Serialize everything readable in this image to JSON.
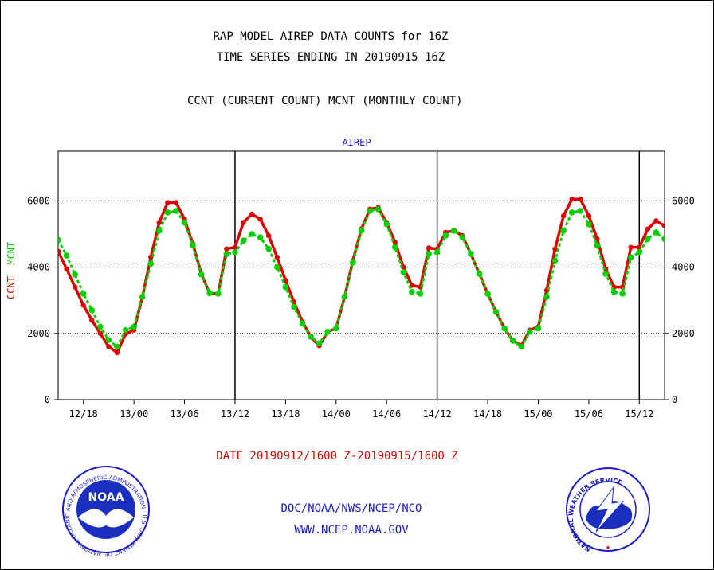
{
  "header": {
    "title_line1": "RAP MODEL AIREP DATA COUNTS for 16Z",
    "title_line2": "TIME SERIES ENDING IN 20190915 16Z",
    "subtitle": "CCNT (CURRENT COUNT) MCNT (MONTHLY COUNT)"
  },
  "footer": {
    "date_range": "DATE 20190912/1600 Z-20190915/1600 Z",
    "credit_line1": "DOC/NOAA/NWS/NCEP/NCO",
    "credit_line2": "WWW.NCEP.NOAA.GOV"
  },
  "logos": {
    "noaa_text": "NOAA",
    "noaa_ring_text": "NATIONAL OCEANIC AND ATMOSPHERIC ADMINISTRATION · U.S. DEPARTMENT OF COMMERCE",
    "nws_ring_text": "NATIONAL WEATHER SERVICE"
  },
  "colors": {
    "ccnt": "#e00000",
    "mcnt": "#00d000",
    "panel_label": "#1a1ac8",
    "frame": "#000000"
  },
  "chart_data": {
    "type": "line",
    "panel_label": "AIREP",
    "ylabel_parts": [
      "CCNT",
      "MCNT"
    ],
    "ylim": [
      0,
      7500
    ],
    "yticks": [
      0,
      2000,
      4000,
      6000
    ],
    "y_gridlines": [
      2000,
      4000,
      6000
    ],
    "x_unit": "hours from 20190912/1600 Z",
    "xlim": [
      -1,
      71
    ],
    "x_tick_positions": [
      2,
      8,
      14,
      20,
      26,
      32,
      38,
      44,
      50,
      56,
      62,
      68
    ],
    "x_tick_labels": [
      "12/18",
      "13/00",
      "13/06",
      "13/12",
      "13/18",
      "14/00",
      "14/06",
      "14/12",
      "14/18",
      "15/00",
      "15/06",
      "15/12"
    ],
    "vertical_separators": [
      20,
      44,
      68
    ],
    "legend": "none",
    "x": [
      -1,
      0,
      1,
      2,
      3,
      4,
      5,
      6,
      7,
      8,
      9,
      10,
      11,
      12,
      13,
      14,
      15,
      16,
      17,
      18,
      19,
      20,
      21,
      22,
      23,
      24,
      25,
      26,
      27,
      28,
      29,
      30,
      31,
      32,
      33,
      34,
      35,
      36,
      37,
      38,
      39,
      40,
      41,
      42,
      43,
      44,
      45,
      46,
      47,
      48,
      49,
      50,
      51,
      52,
      53,
      54,
      55,
      56,
      57,
      58,
      59,
      60,
      61,
      62,
      63,
      64,
      65,
      66,
      67,
      68,
      69,
      70,
      71
    ],
    "series": [
      {
        "name": "CCNT",
        "color": "#e00000",
        "values": [
          4480,
          3950,
          3400,
          2850,
          2400,
          2000,
          1600,
          1420,
          1980,
          2100,
          3100,
          4300,
          5350,
          5950,
          5950,
          5450,
          4700,
          3800,
          3200,
          3200,
          4550,
          4600,
          5350,
          5600,
          5450,
          4950,
          4300,
          3600,
          2950,
          2350,
          1900,
          1630,
          2050,
          2150,
          3100,
          4200,
          5150,
          5750,
          5800,
          5350,
          4750,
          4000,
          3450,
          3400,
          4580,
          4550,
          5050,
          5100,
          4950,
          4400,
          3800,
          3200,
          2650,
          2150,
          1780,
          1640,
          2100,
          2200,
          3300,
          4550,
          5550,
          6050,
          6050,
          5550,
          4850,
          3950,
          3400,
          3400,
          4600,
          4600,
          5150,
          5400,
          5250
        ]
      },
      {
        "name": "MCNT",
        "color": "#00d000",
        "values": [
          4820,
          4350,
          3780,
          3200,
          2700,
          2200,
          1800,
          1600,
          2100,
          2200,
          3100,
          4100,
          5100,
          5650,
          5700,
          5350,
          4650,
          3780,
          3220,
          3200,
          4400,
          4450,
          4800,
          5000,
          4900,
          4550,
          4000,
          3400,
          2800,
          2300,
          1900,
          1700,
          2050,
          2150,
          3100,
          4150,
          5100,
          5700,
          5750,
          5300,
          4600,
          3850,
          3250,
          3200,
          4400,
          4450,
          4950,
          5100,
          4900,
          4400,
          3800,
          3200,
          2650,
          2150,
          1780,
          1600,
          2050,
          2150,
          3100,
          4200,
          5100,
          5650,
          5700,
          5300,
          4650,
          3800,
          3250,
          3200,
          4300,
          4450,
          4850,
          5050,
          4850
        ]
      }
    ]
  }
}
